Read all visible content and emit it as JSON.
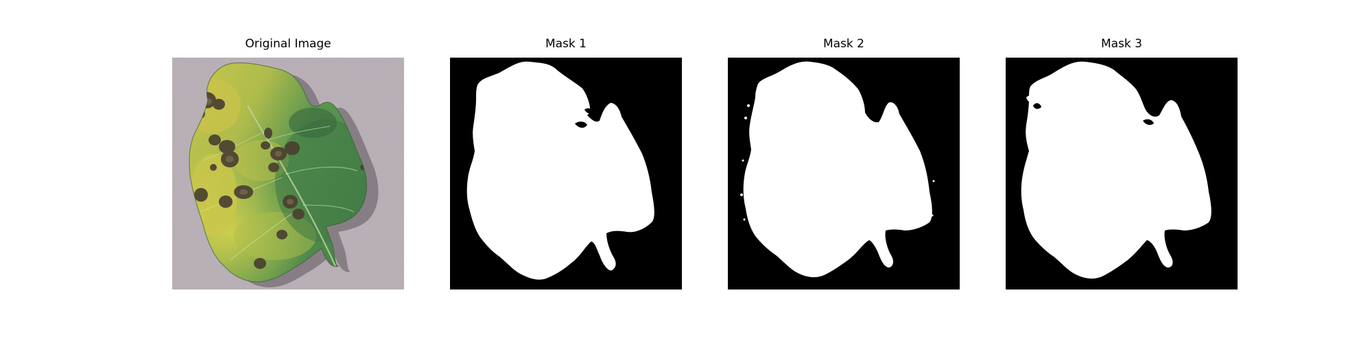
{
  "figure": {
    "panels": [
      {
        "title": "Original Image",
        "content": "photo of tomato leaf with dark brown leaf spots and yellowing"
      },
      {
        "title": "Mask 1",
        "content": "binary segmentation mask"
      },
      {
        "title": "Mask 2",
        "content": "binary segmentation mask"
      },
      {
        "title": "Mask 3",
        "content": "binary segmentation mask"
      }
    ]
  },
  "colors": {
    "background": "#b4abb1",
    "leaf_dark": "#3b7d3a",
    "leaf_light": "#c9c63a",
    "lesion": "#4a4030",
    "mask_bg": "#000000",
    "mask_fg": "#ffffff"
  }
}
